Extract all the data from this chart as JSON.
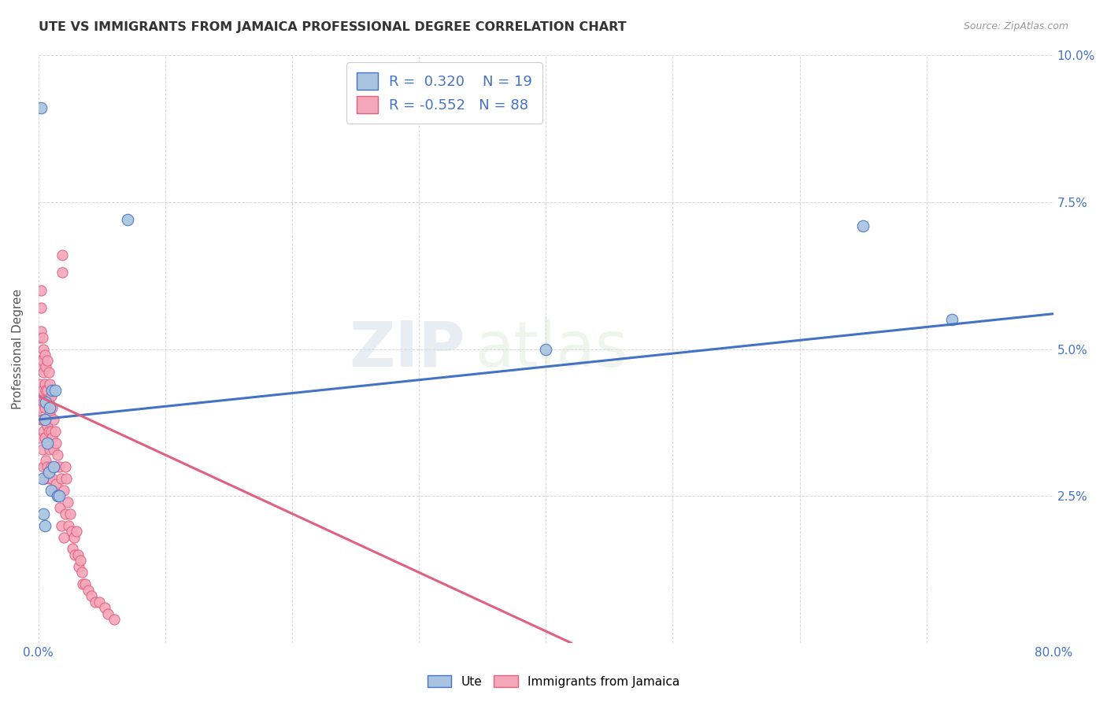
{
  "title": "UTE VS IMMIGRANTS FROM JAMAICA PROFESSIONAL DEGREE CORRELATION CHART",
  "source": "Source: ZipAtlas.com",
  "ylabel": "Professional Degree",
  "xmin": 0.0,
  "xmax": 0.8,
  "ymin": 0.0,
  "ymax": 0.1,
  "xticks": [
    0.0,
    0.1,
    0.2,
    0.3,
    0.4,
    0.5,
    0.6,
    0.7,
    0.8
  ],
  "yticks": [
    0.0,
    0.025,
    0.05,
    0.075,
    0.1
  ],
  "legend_labels": [
    "Ute",
    "Immigrants from Jamaica"
  ],
  "ute_color": "#a8c4e0",
  "jamaica_color": "#f4a7b9",
  "ute_line_color": "#4472c4",
  "jamaica_line_color": "#e06080",
  "R_ute": 0.32,
  "N_ute": 19,
  "R_jamaica": -0.552,
  "N_jamaica": 88,
  "watermark_zip": "ZIP",
  "watermark_atlas": "atlas",
  "ute_x": [
    0.002,
    0.003,
    0.004,
    0.005,
    0.005,
    0.006,
    0.007,
    0.008,
    0.009,
    0.01,
    0.011,
    0.012,
    0.013,
    0.015,
    0.016,
    0.07,
    0.4,
    0.65,
    0.72
  ],
  "ute_y": [
    0.091,
    0.028,
    0.022,
    0.038,
    0.02,
    0.041,
    0.034,
    0.029,
    0.04,
    0.026,
    0.043,
    0.03,
    0.043,
    0.025,
    0.025,
    0.072,
    0.05,
    0.071,
    0.055
  ],
  "jamaica_x": [
    0.001,
    0.001,
    0.001,
    0.001,
    0.001,
    0.002,
    0.002,
    0.002,
    0.002,
    0.002,
    0.002,
    0.003,
    0.003,
    0.003,
    0.003,
    0.003,
    0.004,
    0.004,
    0.004,
    0.004,
    0.004,
    0.005,
    0.005,
    0.005,
    0.005,
    0.005,
    0.006,
    0.006,
    0.006,
    0.006,
    0.007,
    0.007,
    0.007,
    0.007,
    0.008,
    0.008,
    0.008,
    0.008,
    0.009,
    0.009,
    0.009,
    0.01,
    0.01,
    0.01,
    0.011,
    0.011,
    0.011,
    0.012,
    0.012,
    0.012,
    0.013,
    0.013,
    0.014,
    0.014,
    0.015,
    0.015,
    0.016,
    0.017,
    0.018,
    0.018,
    0.019,
    0.019,
    0.02,
    0.02,
    0.021,
    0.021,
    0.022,
    0.023,
    0.024,
    0.025,
    0.026,
    0.027,
    0.028,
    0.029,
    0.03,
    0.031,
    0.032,
    0.033,
    0.034,
    0.035,
    0.037,
    0.039,
    0.042,
    0.045,
    0.048,
    0.052,
    0.055,
    0.06
  ],
  "jamaica_y": [
    0.052,
    0.048,
    0.044,
    0.04,
    0.035,
    0.06,
    0.057,
    0.053,
    0.047,
    0.042,
    0.038,
    0.052,
    0.048,
    0.043,
    0.038,
    0.033,
    0.05,
    0.046,
    0.041,
    0.036,
    0.03,
    0.049,
    0.044,
    0.04,
    0.035,
    0.028,
    0.047,
    0.043,
    0.038,
    0.031,
    0.048,
    0.043,
    0.037,
    0.03,
    0.046,
    0.041,
    0.036,
    0.028,
    0.044,
    0.039,
    0.033,
    0.042,
    0.036,
    0.03,
    0.04,
    0.035,
    0.028,
    0.038,
    0.033,
    0.026,
    0.036,
    0.03,
    0.034,
    0.027,
    0.032,
    0.025,
    0.03,
    0.023,
    0.028,
    0.02,
    0.066,
    0.063,
    0.026,
    0.018,
    0.03,
    0.022,
    0.028,
    0.024,
    0.02,
    0.022,
    0.019,
    0.016,
    0.018,
    0.015,
    0.019,
    0.015,
    0.013,
    0.014,
    0.012,
    0.01,
    0.01,
    0.009,
    0.008,
    0.007,
    0.007,
    0.006,
    0.005,
    0.004
  ]
}
